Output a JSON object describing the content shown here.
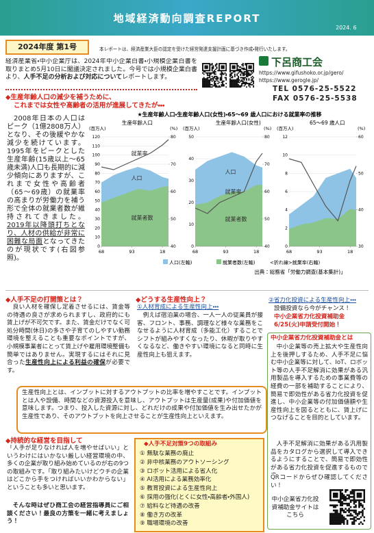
{
  "header": {
    "title": "地域経済動向調査REPORT",
    "date": "2024. 6"
  },
  "issue": {
    "label": "2024年度 第1号",
    "note": "本レポートは、経済産業大臣の認定を受けた経営発達支援計画に基づき作成・発行いたします。"
  },
  "intro": [
    "経済産業省・中小企業庁は、2024年中小企業白書・小規模企業白書を取りまとめ5月10日に閣議決定されました。今号では小規模企業白書より、",
    "人手不足の分析および対応について",
    "レポートします。"
  ],
  "contact": {
    "name": "下呂商工会",
    "url1": "https://www.gifushoko.or.jp/gero/",
    "url2": "https://www.gerogle.jp/",
    "tel": "TEL 0576-25-5522",
    "fax": "FAX 0576-25-5538"
  },
  "headline": [
    "◆生産年齢人口の減少を補うために、",
    "これまでは女性や高齢者の活用が進展してきたが・・・"
  ],
  "lead": [
    "2008年日本の人口はピーク（1億2808万人）となり、その後緩やかな減少を続けています。1995年をピークとした生産年齢(15歳以上〜65歳未満)人口も長期的に減少傾向にありますが、これまで女性や高齢者（65〜69歳）の就業率の高まりが労働力を補う形で全体の就業者数が維持されてきました。",
    "2019年以降頭打ちとなり、人材の供給が非常に困難な局面",
    "となってきたのが現状です(右図参照)。"
  ],
  "figure": {
    "title": "★生産年齢人口・生産年齢人口(女性)・65〜69 歳人口における就業率の推移",
    "legend": [
      "人口(左軸)",
      "就業者数(左軸)",
      "<折れ線>就業率(右軸)"
    ],
    "source": "出典：総務省「労働力調査(基本集計)」"
  },
  "charts": [
    {
      "type": "area-line",
      "title": "生産年齢人口",
      "y_unit": "(百万人)",
      "y2_unit": "(%)",
      "x": [
        1968,
        1978,
        1988,
        1998,
        2008,
        2018,
        2023
      ],
      "xlim": [
        1968,
        2023
      ],
      "xticks": [
        {
          "value": 1968,
          "label": "68"
        },
        {
          "value": 1993,
          "label": "93"
        },
        {
          "value": 2018,
          "label": "18"
        }
      ],
      "ylim": [
        0,
        120
      ],
      "yticks": [
        0,
        10,
        20,
        30,
        40,
        50,
        60,
        70,
        80,
        90,
        100,
        110,
        120
      ],
      "y2lim": [
        40,
        80
      ],
      "y2ticks": [
        40,
        50,
        60,
        70,
        80
      ],
      "series": [
        {
          "name": "人口",
          "color": "#8ec3e6",
          "values": [
            70,
            78,
            83,
            87,
            83,
            76,
            74
          ]
        },
        {
          "name": "就業者数",
          "color": "#8cc58a",
          "values": [
            48,
            53,
            58,
            63,
            61,
            65,
            66
          ]
        },
        {
          "name": "就業率",
          "color": "#555555",
          "axis": "y2",
          "values": [
            69,
            68,
            70,
            72,
            74,
            77,
            79
          ]
        }
      ]
    },
    {
      "type": "area-line",
      "title": "生産年齢人口(女性)",
      "y_unit": "(百万人)",
      "y2_unit": "(%)",
      "x": [
        1968,
        1978,
        1988,
        1998,
        2008,
        2018,
        2023
      ],
      "xlim": [
        1968,
        2023
      ],
      "xticks": [
        {
          "value": 1968,
          "label": "68"
        },
        {
          "value": 1993,
          "label": "93"
        },
        {
          "value": 2018,
          "label": "18"
        }
      ],
      "ylim": [
        0,
        50
      ],
      "yticks": [
        0,
        10,
        20,
        30,
        40,
        50
      ],
      "y2lim": [
        40,
        80
      ],
      "y2ticks": [
        40,
        50,
        60,
        70,
        80
      ],
      "series": [
        {
          "name": "人口",
          "color": "#8ec3e6",
          "values": [
            35,
            39,
            41,
            43,
            41,
            37,
            36
          ]
        },
        {
          "name": "就業者数",
          "color": "#8cc58a",
          "values": [
            19,
            20,
            23,
            25,
            25,
            28,
            28
          ]
        },
        {
          "name": "就業率",
          "color": "#555555",
          "axis": "y2",
          "values": [
            54,
            52,
            56,
            58,
            60,
            71,
            74
          ]
        }
      ]
    },
    {
      "type": "area-line",
      "title": "65〜69 歳人口",
      "y_unit": "(百万人)",
      "y2_unit": "(%)",
      "x": [
        1968,
        1978,
        1988,
        1998,
        2008,
        2018,
        2023
      ],
      "xlim": [
        1968,
        2023
      ],
      "xticks": [
        {
          "value": 1968,
          "label": "68"
        },
        {
          "value": 1993,
          "label": "93"
        },
        {
          "value": 2018,
          "label": "18"
        }
      ],
      "ylim": [
        0,
        12
      ],
      "yticks": [
        0,
        2,
        4,
        6,
        8,
        10,
        12
      ],
      "y2lim": [
        30,
        60
      ],
      "y2ticks": [
        30,
        40,
        50,
        60
      ],
      "series": [
        {
          "color": "#8ec3e6",
          "values": [
            3.5,
            4.5,
            5.5,
            7.5,
            8,
            8.5,
            7.5
          ]
        },
        {
          "color": "#8cc58a",
          "values": [
            1.9,
            2.4,
            2.6,
            3.1,
            3.0,
            4.1,
            4.0
          ]
        },
        {
          "color": "#555555",
          "axis": "y2",
          "values": [
            54,
            53,
            47,
            41,
            37,
            48,
            52
          ]
        }
      ]
    }
  ],
  "sec1": {
    "heading": "◆人手不足の打開策とは？",
    "body": [
      "良い人材を確保し定着させるには、賃金等の待遇の良さが求められますし、政府的にも賃上げが不可欠です。また、賃金だけでなく可処分時間(休日)の多さや子育てのしやすい勤務環境を整えることも重要なポイントですが、小規模事業者にとって賃上げや雇用環境整備も簡単ではありません。実現するにはそれに見合った",
      "生産性向上による利益の確保",
      "が必要です。"
    ]
  },
  "sec2": {
    "heading": "◆どうする生産性向上？",
    "sub": "①人材育成による生産性向上・・・",
    "body": "例えば宿泊業の場合、一人一人の従業員が接客、フロント、事務、調理など様々な業務をこなせるように人材育成（多能工化）することでシフトが組みやすくなったり、休暇が取りやすくなるなど、働きやすい環境になると同時に生産性向上も狙えます。"
  },
  "sec3": {
    "sub": "②省力化投資による生産性向上・・・",
    "line1": "設備投資なら今がチャンス！",
    "line2": "中小企業省力化投資補助金",
    "line3": "6/25(火)申請受付開始！"
  },
  "definition": "生産性向上とは、インプットに対するアウトプットの比率を増やすことです。インプットとは人や設備、時間などの資源投入を意味し、アウトプットは生産量(成果)や付加価値を意味します。つまり、投入した資源に対し、どれだけの成果や付加価値を生み出せたかが生産性であり、そのアウトプットを向上させることが生産性向上といえます。",
  "subsidy": {
    "heading": "中小企業省力化投資補助金とは",
    "body1": "中小企業等の売上拡大や生産性向上を後押しするため、人手不足に悩む中小企業等に対して、IoT、ロボット等の人手不足解消に効果がある汎用製品を導入するための事業費等の経費の一部を補助することにより、簡易で即効性がある省力化投資を促進し、中小企業等の付加価値額や生産性向上を図るとともに、賃上げにつなげることを目的としています。",
    "body2": "人手不足解消に効果がある汎用製品をカタログから選択して導入できるようにすることで、簡易で即効性がある省力化投資を促進するものです。",
    "body3": "QRコードからぜひ確認してください！",
    "link": "中小企業省力化投資補助金サイトはこちら"
  },
  "sec4": {
    "heading": "◆持続的な経営を目指して",
    "body": "「人手が足りなければ人を増やせばいい」というわけにはいかない厳しい経営環境の中、多くの企業が取り組み始めているのが右の9つの取組みです。「取り組みたいけどウチの企業はどこから手をつければいいかわからない」ということも多いと思います。",
    "call": "そんな時はぜひ商工会の経営指導員にご相談ください！最良の方策を一緒に考えましょう！"
  },
  "measures": {
    "heading": "◆人手不足対策9つの取組み",
    "items": [
      "① 無駄な業務の廃止",
      "② 非中核業務のアウトソーシング",
      "③ ロボット活用による省人化",
      "④ AI活用による業務効率化",
      "⑤ 教育投資による生産性向上",
      "⑥ 採用の強化(とくに女性・高齢者・外国人)",
      "⑦ 給料など待遇の改善",
      "⑧ 働き方の改革",
      "⑨ 職場環境の改善"
    ]
  }
}
